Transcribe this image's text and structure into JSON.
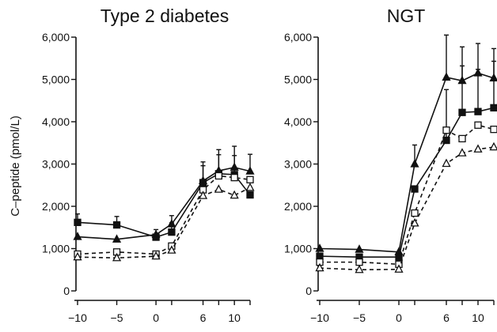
{
  "chart_data": [
    {
      "type": "line",
      "title": "Type 2 diabetes",
      "ylabel": "C–peptide (pmol/L)",
      "xlabel": "",
      "xlim": [
        -10,
        12
      ],
      "ylim": [
        0,
        6000
      ],
      "x_ticks": [
        -10,
        -5,
        0,
        6,
        10
      ],
      "y_ticks": [
        0,
        1000,
        2000,
        3000,
        4000,
        5000,
        6000
      ],
      "y_tick_labels": [
        "0",
        "1,000",
        "2,000",
        "3,000",
        "4,000",
        "5,000",
        "6,000"
      ],
      "x": [
        -10,
        -5,
        0,
        2,
        6,
        8,
        10,
        12
      ],
      "series": [
        {
          "marker": "square-filled",
          "line": "solid",
          "values": [
            1620,
            1560,
            1270,
            1390,
            2560,
            2770,
            2750,
            2270
          ],
          "error": [
            200,
            200,
            180,
            220,
            400,
            450,
            450,
            0
          ]
        },
        {
          "marker": "triangle-filled",
          "line": "solid",
          "values": [
            1280,
            1220,
            1330,
            1580,
            2600,
            2840,
            2920,
            2830
          ],
          "error": [
            0,
            0,
            0,
            200,
            450,
            500,
            500,
            400
          ]
        },
        {
          "marker": "square-open",
          "line": "dashed",
          "values": [
            870,
            920,
            870,
            1060,
            2390,
            2720,
            2680,
            2630
          ],
          "error": [
            0,
            0,
            0,
            0,
            0,
            0,
            0,
            0
          ]
        },
        {
          "marker": "triangle-open",
          "line": "dashed",
          "values": [
            800,
            780,
            820,
            960,
            2250,
            2400,
            2260,
            2440
          ],
          "error": [
            0,
            0,
            0,
            0,
            0,
            0,
            0,
            0
          ]
        }
      ]
    },
    {
      "type": "line",
      "title": "NGT",
      "ylabel": "",
      "xlabel": "",
      "xlim": [
        -10,
        12
      ],
      "ylim": [
        0,
        6000
      ],
      "x_ticks": [
        -10,
        -5,
        0,
        6,
        10
      ],
      "y_ticks": [
        0,
        1000,
        2000,
        3000,
        4000,
        5000,
        6000
      ],
      "y_tick_labels": [
        "0",
        "1,000",
        "2,000",
        "3,000",
        "4,000",
        "5,000",
        "6,000"
      ],
      "x": [
        -10,
        -5,
        0,
        2,
        6,
        8,
        10,
        12
      ],
      "series": [
        {
          "marker": "triangle-filled",
          "line": "solid",
          "values": [
            1000,
            980,
            920,
            3000,
            5050,
            4970,
            5150,
            5030
          ],
          "error": [
            0,
            0,
            0,
            450,
            1000,
            800,
            700,
            700
          ]
        },
        {
          "marker": "square-filled",
          "line": "solid",
          "values": [
            820,
            800,
            800,
            2410,
            3560,
            4220,
            4240,
            4330
          ],
          "error": [
            0,
            0,
            0,
            0,
            1200,
            1100,
            1000,
            1100
          ]
        },
        {
          "marker": "square-open",
          "line": "dashed",
          "values": [
            680,
            680,
            630,
            1840,
            3800,
            3600,
            3920,
            3820
          ],
          "error": [
            0,
            0,
            0,
            0,
            0,
            0,
            0,
            0
          ]
        },
        {
          "marker": "triangle-open",
          "line": "dashed",
          "values": [
            540,
            500,
            510,
            1600,
            3010,
            3260,
            3350,
            3400
          ],
          "error": [
            0,
            0,
            0,
            0,
            0,
            0,
            0,
            0
          ]
        }
      ]
    }
  ]
}
